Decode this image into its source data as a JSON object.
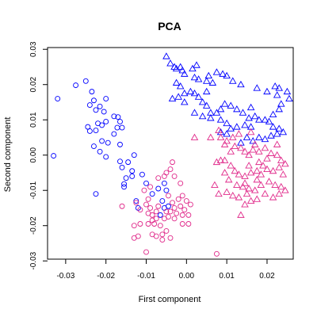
{
  "chart_data": {
    "type": "scatter",
    "title": "PCA",
    "xlabel": "First component",
    "ylabel": "Second component",
    "xlim": [
      -0.0345,
      0.0265
    ],
    "ylim": [
      -0.0295,
      0.0305
    ],
    "xticks": [
      -0.03,
      -0.02,
      -0.01,
      0.0,
      0.01,
      0.02
    ],
    "xtick_labels": [
      "-0.03",
      "-0.02",
      "-0.01",
      "0.00",
      "0.01",
      "0.02"
    ],
    "yticks": [
      -0.03,
      -0.02,
      -0.01,
      0.0,
      0.01,
      0.02,
      0.03
    ],
    "ytick_labels": [
      "-0.03",
      "-0.02",
      "-0.01",
      "0.00",
      "0.01",
      "0.02",
      "0.03"
    ],
    "grid": false,
    "series": [
      {
        "marker": "circle",
        "color": "#0000ff",
        "points": [
          [
            -0.033,
            -0.0002
          ],
          [
            -0.032,
            0.016
          ],
          [
            -0.0275,
            0.0198
          ],
          [
            -0.025,
            0.021
          ],
          [
            -0.0235,
            0.018
          ],
          [
            -0.024,
            0.0142
          ],
          [
            -0.023,
            0.0155
          ],
          [
            -0.0225,
            0.0128
          ],
          [
            -0.0215,
            0.0138
          ],
          [
            -0.0205,
            0.0123
          ],
          [
            -0.02,
            0.0095
          ],
          [
            -0.022,
            0.009
          ],
          [
            -0.02,
            0.016
          ],
          [
            -0.018,
            0.011
          ],
          [
            -0.017,
            0.0108
          ],
          [
            -0.0165,
            0.0095
          ],
          [
            -0.0172,
            0.0078
          ],
          [
            -0.016,
            0.0078
          ],
          [
            -0.018,
            0.006
          ],
          [
            -0.021,
            0.0085
          ],
          [
            -0.0225,
            0.007
          ],
          [
            -0.0245,
            0.008
          ],
          [
            -0.024,
            0.0068
          ],
          [
            -0.021,
            0.004
          ],
          [
            -0.0195,
            0.0035
          ],
          [
            -0.023,
            0.0025
          ],
          [
            -0.0215,
            0.001
          ],
          [
            -0.02,
            -0.0005
          ],
          [
            -0.0165,
            0.003
          ],
          [
            -0.0165,
            -0.0018
          ],
          [
            -0.016,
            -0.0035
          ],
          [
            -0.015,
            -0.0065
          ],
          [
            -0.0135,
            -0.0045
          ],
          [
            -0.013,
            0.0
          ],
          [
            -0.0145,
            -0.002
          ],
          [
            -0.0135,
            -0.006
          ],
          [
            -0.011,
            -0.0055
          ],
          [
            -0.01,
            -0.008
          ],
          [
            -0.0085,
            -0.011
          ],
          [
            -0.007,
            -0.0095
          ],
          [
            -0.0055,
            -0.008
          ],
          [
            -0.005,
            -0.01
          ],
          [
            -0.006,
            -0.013
          ],
          [
            -0.0055,
            -0.015
          ],
          [
            -0.0045,
            -0.0145
          ],
          [
            -0.0065,
            -0.017
          ],
          [
            -0.0155,
            -0.009
          ],
          [
            -0.0155,
            -0.0082
          ],
          [
            -0.0225,
            -0.011
          ],
          [
            -0.0125,
            -0.013
          ],
          [
            -0.012,
            -0.015
          ]
        ]
      },
      {
        "marker": "circle",
        "color": "#e0298a",
        "points": [
          [
            -0.016,
            -0.0145
          ],
          [
            -0.0125,
            -0.0135
          ],
          [
            -0.013,
            -0.02
          ],
          [
            -0.012,
            -0.023
          ],
          [
            -0.0115,
            -0.0155
          ],
          [
            -0.01,
            -0.014
          ],
          [
            -0.0095,
            -0.0125
          ],
          [
            -0.009,
            -0.015
          ],
          [
            -0.0085,
            -0.017
          ],
          [
            -0.0085,
            -0.0185
          ],
          [
            -0.008,
            -0.0195
          ],
          [
            -0.0075,
            -0.018
          ],
          [
            -0.0075,
            -0.016
          ],
          [
            -0.007,
            -0.0145
          ],
          [
            -0.0065,
            -0.02
          ],
          [
            -0.006,
            -0.0225
          ],
          [
            -0.0055,
            -0.018
          ],
          [
            -0.005,
            -0.016
          ],
          [
            -0.0045,
            -0.0175
          ],
          [
            -0.004,
            -0.016
          ],
          [
            -0.0035,
            -0.0135
          ],
          [
            -0.003,
            -0.015
          ],
          [
            -0.003,
            -0.018
          ],
          [
            -0.0025,
            -0.0165
          ],
          [
            -0.002,
            -0.0125
          ],
          [
            -0.0015,
            -0.0145
          ],
          [
            -0.001,
            -0.017
          ],
          [
            -0.001,
            -0.0195
          ],
          [
            -0.0005,
            -0.0155
          ],
          [
            0.0,
            -0.013
          ],
          [
            0.0005,
            -0.017
          ],
          [
            0.0005,
            -0.0195
          ],
          [
            0.001,
            -0.014
          ],
          [
            -0.004,
            -0.0235
          ],
          [
            -0.005,
            -0.0215
          ],
          [
            -0.006,
            -0.024
          ],
          [
            -0.0075,
            -0.023
          ],
          [
            -0.0085,
            -0.0225
          ],
          [
            -0.0095,
            -0.0165
          ],
          [
            -0.0105,
            -0.01
          ],
          [
            -0.009,
            -0.009
          ],
          [
            -0.007,
            -0.0065
          ],
          [
            -0.0055,
            -0.006
          ],
          [
            -0.0035,
            -0.002
          ],
          [
            -0.004,
            -0.004
          ],
          [
            -0.005,
            -0.005
          ],
          [
            -0.003,
            -0.006
          ],
          [
            -0.0015,
            -0.008
          ],
          [
            -0.0045,
            -0.0115
          ],
          [
            -0.013,
            -0.0235
          ],
          [
            -0.01,
            -0.0275
          ],
          [
            0.0075,
            -0.028
          ],
          [
            -0.001,
            -0.0115
          ],
          [
            -0.0095,
            -0.0195
          ],
          [
            -0.0115,
            -0.0195
          ]
        ]
      },
      {
        "marker": "triangle",
        "color": "#0000ff",
        "points": [
          [
            -0.005,
            0.028
          ],
          [
            -0.004,
            0.026
          ],
          [
            -0.003,
            0.025
          ],
          [
            -0.0025,
            0.0245
          ],
          [
            -0.0015,
            0.025
          ],
          [
            -0.001,
            0.024
          ],
          [
            -0.0005,
            0.023
          ],
          [
            0.0015,
            0.0245
          ],
          [
            0.0025,
            0.0255
          ],
          [
            0.002,
            0.022
          ],
          [
            0.003,
            0.0215
          ],
          [
            0.005,
            0.021
          ],
          [
            0.0055,
            0.0225
          ],
          [
            0.0065,
            0.0205
          ],
          [
            0.0075,
            0.0235
          ],
          [
            0.009,
            0.023
          ],
          [
            0.01,
            0.0225
          ],
          [
            0.0115,
            0.021
          ],
          [
            0.0135,
            0.02
          ],
          [
            0.0175,
            0.019
          ],
          [
            0.02,
            0.018
          ],
          [
            0.022,
            0.0195
          ],
          [
            0.023,
            0.019
          ],
          [
            0.025,
            0.018
          ],
          [
            0.0255,
            0.016
          ],
          [
            0.0235,
            0.0145
          ],
          [
            0.023,
            0.013
          ],
          [
            0.0215,
            0.0115
          ],
          [
            0.0195,
            0.01
          ],
          [
            0.017,
            0.011
          ],
          [
            0.0155,
            0.0105
          ],
          [
            0.014,
            0.012
          ],
          [
            0.0125,
            0.013
          ],
          [
            0.011,
            0.014
          ],
          [
            0.0095,
            0.0145
          ],
          [
            0.0085,
            0.013
          ],
          [
            0.0075,
            0.012
          ],
          [
            0.006,
            0.012
          ],
          [
            0.005,
            0.014
          ],
          [
            0.004,
            0.015
          ],
          [
            0.003,
            0.0165
          ],
          [
            0.002,
            0.0175
          ],
          [
            0.001,
            0.018
          ],
          [
            -0.0005,
            0.0175
          ],
          [
            -0.002,
            0.0165
          ],
          [
            -0.0035,
            0.016
          ],
          [
            -0.0015,
            0.0195
          ],
          [
            -0.0025,
            0.0205
          ],
          [
            0.005,
            0.018
          ],
          [
            0.0085,
            0.01
          ],
          [
            0.01,
            0.009
          ],
          [
            0.011,
            0.0075
          ],
          [
            0.0125,
            0.008
          ],
          [
            0.0145,
            0.0085
          ],
          [
            0.016,
            0.008
          ],
          [
            0.018,
            0.01
          ],
          [
            0.0205,
            0.0095
          ],
          [
            0.0215,
            0.008
          ],
          [
            0.023,
            0.0075
          ],
          [
            0.024,
            0.0065
          ],
          [
            0.0225,
            0.006
          ],
          [
            0.021,
            0.0055
          ],
          [
            0.0195,
            0.0045
          ],
          [
            0.018,
            0.005
          ],
          [
            0.0165,
            0.004
          ],
          [
            0.015,
            0.005
          ],
          [
            0.0135,
            0.0035
          ],
          [
            0.01,
            0.006
          ],
          [
            0.0085,
            0.0065
          ],
          [
            0.006,
            0.0105
          ],
          [
            0.004,
            0.011
          ],
          [
            0.002,
            0.012
          ],
          [
            -0.0005,
            0.015
          ],
          [
            0.0225,
            0.017
          ],
          [
            0.016,
            0.0135
          ]
        ]
      },
      {
        "marker": "triangle",
        "color": "#e0298a",
        "points": [
          [
            0.008,
            0.007
          ],
          [
            0.006,
            0.005
          ],
          [
            0.0085,
            0.005
          ],
          [
            0.01,
            0.004
          ],
          [
            0.0095,
            0.003
          ],
          [
            0.011,
            0.001
          ],
          [
            0.012,
            0.0025
          ],
          [
            0.0135,
            0.002
          ],
          [
            0.0145,
            0.001
          ],
          [
            0.0155,
            0.0
          ],
          [
            0.0165,
            0.0015
          ],
          [
            0.018,
            0.001
          ],
          [
            0.0195,
            0.002
          ],
          [
            0.021,
            0.0005
          ],
          [
            0.0225,
            0.0
          ],
          [
            0.0235,
            -0.0015
          ],
          [
            0.0245,
            -0.0025
          ],
          [
            0.023,
            -0.0035
          ],
          [
            0.0215,
            -0.0045
          ],
          [
            0.02,
            -0.004
          ],
          [
            0.0185,
            -0.0055
          ],
          [
            0.0175,
            -0.0045
          ],
          [
            0.016,
            -0.005
          ],
          [
            0.0145,
            -0.006
          ],
          [
            0.013,
            -0.0055
          ],
          [
            0.012,
            -0.0045
          ],
          [
            0.011,
            -0.003
          ],
          [
            0.0095,
            -0.0015
          ],
          [
            0.0085,
            -0.0015
          ],
          [
            0.0075,
            -0.002
          ],
          [
            0.0095,
            -0.005
          ],
          [
            0.0105,
            -0.007
          ],
          [
            0.0125,
            -0.0085
          ],
          [
            0.014,
            -0.009
          ],
          [
            0.0155,
            -0.0095
          ],
          [
            0.017,
            -0.01
          ],
          [
            0.0185,
            -0.0085
          ],
          [
            0.0205,
            -0.0075
          ],
          [
            0.022,
            -0.0085
          ],
          [
            0.0235,
            -0.009
          ],
          [
            0.0245,
            -0.01
          ],
          [
            0.023,
            -0.011
          ],
          [
            0.0215,
            -0.012
          ],
          [
            0.0195,
            -0.011
          ],
          [
            0.0175,
            -0.0125
          ],
          [
            0.016,
            -0.013
          ],
          [
            0.0145,
            -0.014
          ],
          [
            0.013,
            -0.012
          ],
          [
            0.0115,
            -0.0115
          ],
          [
            0.01,
            -0.0105
          ],
          [
            0.015,
            -0.011
          ],
          [
            0.0135,
            -0.017
          ],
          [
            0.0145,
            -0.008
          ],
          [
            0.0175,
            -0.007
          ],
          [
            0.019,
            -0.003
          ],
          [
            0.02,
            -0.001
          ],
          [
            0.0225,
            0.003
          ],
          [
            0.016,
            0.0065
          ],
          [
            0.013,
            0.006
          ],
          [
            0.0115,
            0.005
          ],
          [
            0.017,
            0.003
          ],
          [
            0.024,
            -0.0055
          ],
          [
            0.018,
            -0.002
          ],
          [
            0.0155,
            -0.003
          ],
          [
            0.002,
            0.005
          ],
          [
            0.007,
            -0.0085
          ],
          [
            0.008,
            -0.011
          ]
        ]
      }
    ]
  }
}
